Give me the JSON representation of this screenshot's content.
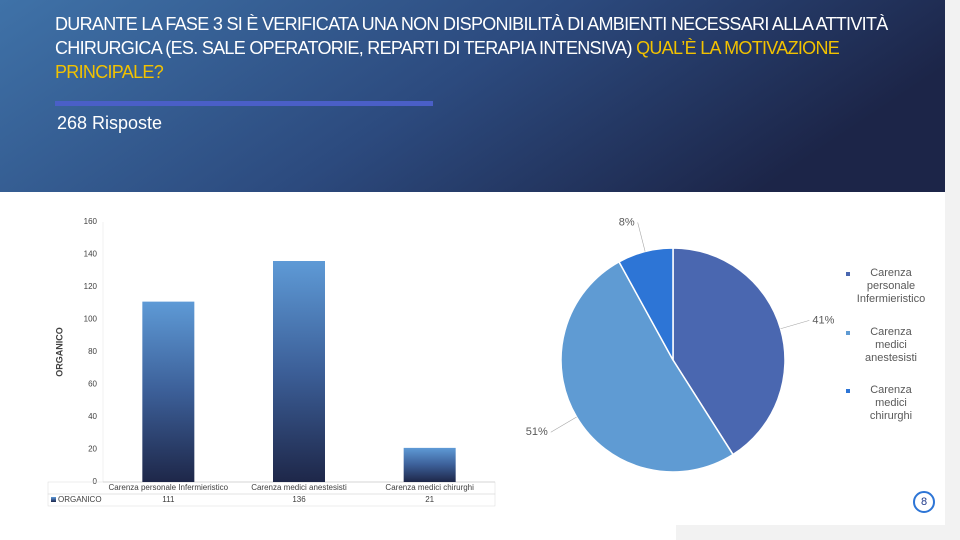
{
  "header": {
    "title": "DURANTE LA FASE 3 SI È VERIFICATA UNA NON DISPONIBILITÀ DI AMBIENTI NECESSARI ALLA ATTIVITÀ CHIRURGICA (ES. SALE OPERATORIE, REPARTI DI TERAPIA INTENSIVA)",
    "title_highlight": "QUAL’È LA MOTIVAZIONE PRINCIPALE?",
    "subtitle": "268 Risposte"
  },
  "page_number": "8",
  "chart_data": [
    {
      "type": "bar",
      "ylabel": "ORGANICO",
      "categories": [
        "Carenza personale Infermieristico",
        "Carenza medici anestesisti",
        "Carenza medici chirurghi"
      ],
      "series": [
        {
          "name": "ORGANICO",
          "values": [
            111,
            136,
            21
          ]
        }
      ],
      "ylim": [
        0,
        160
      ],
      "yticks": [
        0,
        20,
        40,
        60,
        80,
        100,
        120,
        140,
        160
      ],
      "grid": false
    },
    {
      "type": "pie",
      "categories": [
        "Carenza personale Infermieristico",
        "Carenza medici anestesisti",
        "Carenza medici chirurghi"
      ],
      "values": [
        41,
        51,
        8
      ],
      "value_labels": [
        "41%",
        "51%",
        "8%"
      ],
      "colors": [
        "#4a67b0",
        "#5f9bd3",
        "#2d75d6"
      ]
    }
  ]
}
